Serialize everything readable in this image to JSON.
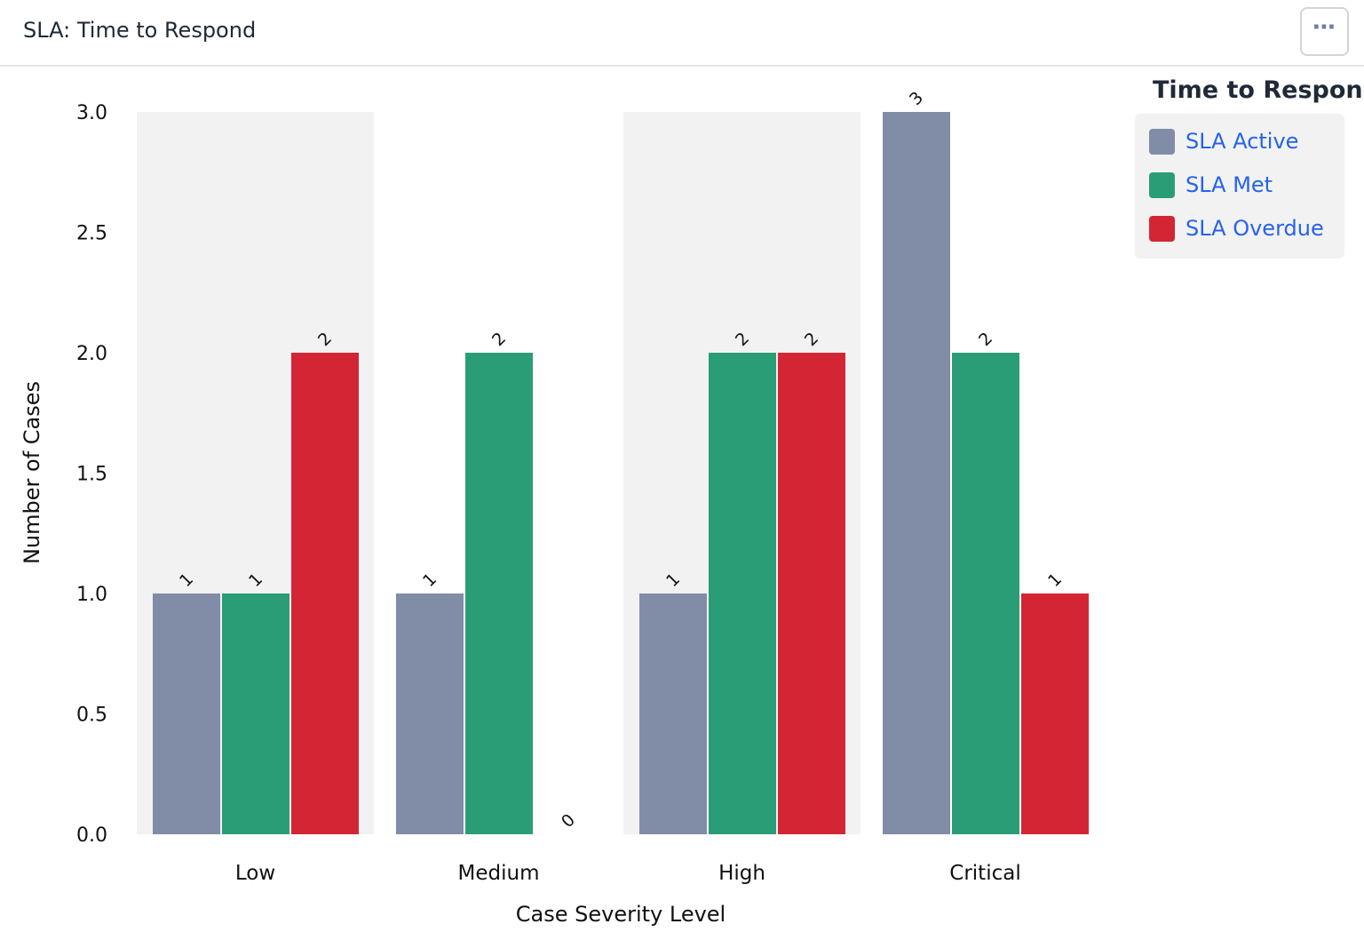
{
  "header": {
    "title": "SLA: Time to Respond",
    "menu_icon": "more-horizontal-icon"
  },
  "legend": {
    "title": "Time to Respond",
    "items": [
      {
        "label": "SLA Active",
        "color": "#818ca7"
      },
      {
        "label": "SLA Met",
        "color": "#2a9d77"
      },
      {
        "label": "SLA Overdue",
        "color": "#d42535"
      }
    ]
  },
  "chart_data": {
    "type": "bar",
    "categories": [
      "Low",
      "Medium",
      "High",
      "Critical"
    ],
    "series": [
      {
        "name": "SLA Active",
        "color": "#818ca7",
        "values": [
          1,
          1,
          1,
          3
        ]
      },
      {
        "name": "SLA Met",
        "color": "#2a9d77",
        "values": [
          1,
          2,
          2,
          2
        ]
      },
      {
        "name": "SLA Overdue",
        "color": "#d42535",
        "values": [
          2,
          0,
          2,
          1
        ]
      }
    ],
    "xlabel": "Case Severity Level",
    "ylabel": "Number of Cases",
    "ylim": [
      0,
      3
    ],
    "yticks": [
      "0.0",
      "0.5",
      "1.0",
      "1.5",
      "2.0",
      "2.5",
      "3.0"
    ],
    "data_labels": true,
    "alternating_band_color": "#f2f2f2",
    "legend_position": "top-right"
  }
}
